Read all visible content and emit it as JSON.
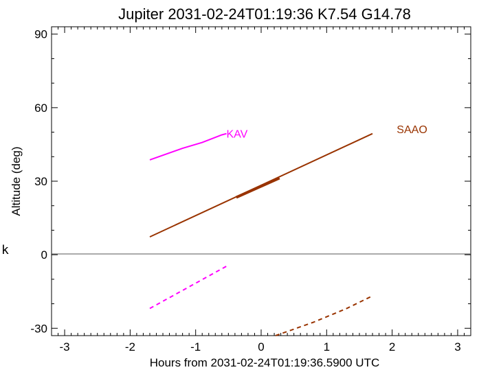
{
  "chart_data": {
    "type": "line",
    "title": "Jupiter 2031-02-24T01:19:36  K7.54  G14.78",
    "xlabel": "Hours from 2031-02-24T01:19:36.5900 UTC",
    "ylabel": "Altitude (deg)",
    "xlim": [
      -3.2,
      3.2
    ],
    "ylim": [
      -33,
      93
    ],
    "xticks": [
      -3,
      -2,
      -1,
      0,
      1,
      2,
      3
    ],
    "yticks": [
      -30,
      0,
      30,
      60,
      90
    ],
    "grid": false,
    "zero_line": 0,
    "series": [
      {
        "name": "KAV",
        "color": "#ff00ff",
        "style": "solid",
        "width": 2,
        "points": [
          [
            -1.7,
            38.7
          ],
          [
            -1.2,
            43.4
          ],
          [
            -0.9,
            45.8
          ],
          [
            -0.6,
            48.9
          ],
          [
            -0.53,
            49.4
          ]
        ]
      },
      {
        "name": "",
        "color": "#ff00ff",
        "style": "dashed",
        "width": 2,
        "points": [
          [
            -1.7,
            -21.9
          ],
          [
            -0.53,
            -4.7
          ]
        ]
      },
      {
        "name": "SAAO",
        "color": "#993300",
        "style": "solid",
        "width": 2,
        "points": [
          [
            -1.7,
            7.3
          ],
          [
            1.7,
            49.4
          ]
        ]
      },
      {
        "name": "",
        "color": "#993300",
        "style": "solid",
        "width": 4,
        "points": [
          [
            -0.38,
            23.4
          ],
          [
            0.28,
            31.3
          ]
        ]
      },
      {
        "name": "",
        "color": "#993300",
        "style": "dashed",
        "width": 2,
        "points": [
          [
            0.22,
            -33.0
          ],
          [
            0.8,
            -27.5
          ],
          [
            1.3,
            -22.0
          ],
          [
            1.7,
            -16.8
          ]
        ]
      }
    ],
    "labels": [
      {
        "text": "KAV",
        "x": -0.53,
        "y": 49.4,
        "color": "#ff00ff"
      },
      {
        "text": "SAAO",
        "x": 2.07,
        "y": 51.3,
        "color": "#993300"
      }
    ]
  },
  "side_mark": "k"
}
